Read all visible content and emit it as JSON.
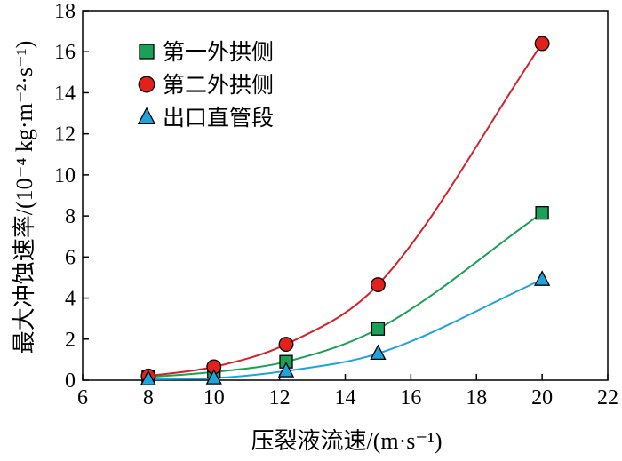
{
  "chart_data": {
    "type": "line",
    "title": "",
    "xlabel": "压裂液流速/(m·s⁻¹)",
    "ylabel": "最大冲蚀速率/(10⁻⁴ kg·m⁻²·s⁻¹)",
    "xlim": [
      6,
      22
    ],
    "ylim": [
      0,
      18
    ],
    "xticks": [
      6,
      8,
      10,
      12,
      14,
      16,
      18,
      20,
      22
    ],
    "yticks": [
      0,
      2,
      4,
      6,
      8,
      10,
      12,
      14,
      16,
      18
    ],
    "grid": false,
    "legend_position": "top-left",
    "x": [
      8,
      10,
      12.2,
      15,
      20
    ],
    "series": [
      {
        "name": "第一外拱侧",
        "marker": "square",
        "color": "#1aa157",
        "line_color": "#1aa157",
        "values": [
          0.15,
          0.4,
          0.9,
          2.5,
          8.15
        ]
      },
      {
        "name": "第二外拱侧",
        "marker": "circle",
        "color": "#e2211c",
        "line_color": "#d2232a",
        "values": [
          0.2,
          0.65,
          1.75,
          4.65,
          16.4
        ]
      },
      {
        "name": "出口直管段",
        "marker": "triangle",
        "color": "#1fa3dd",
        "line_color": "#1fa3dd",
        "values": [
          0.05,
          0.1,
          0.45,
          1.3,
          4.9
        ]
      }
    ]
  }
}
